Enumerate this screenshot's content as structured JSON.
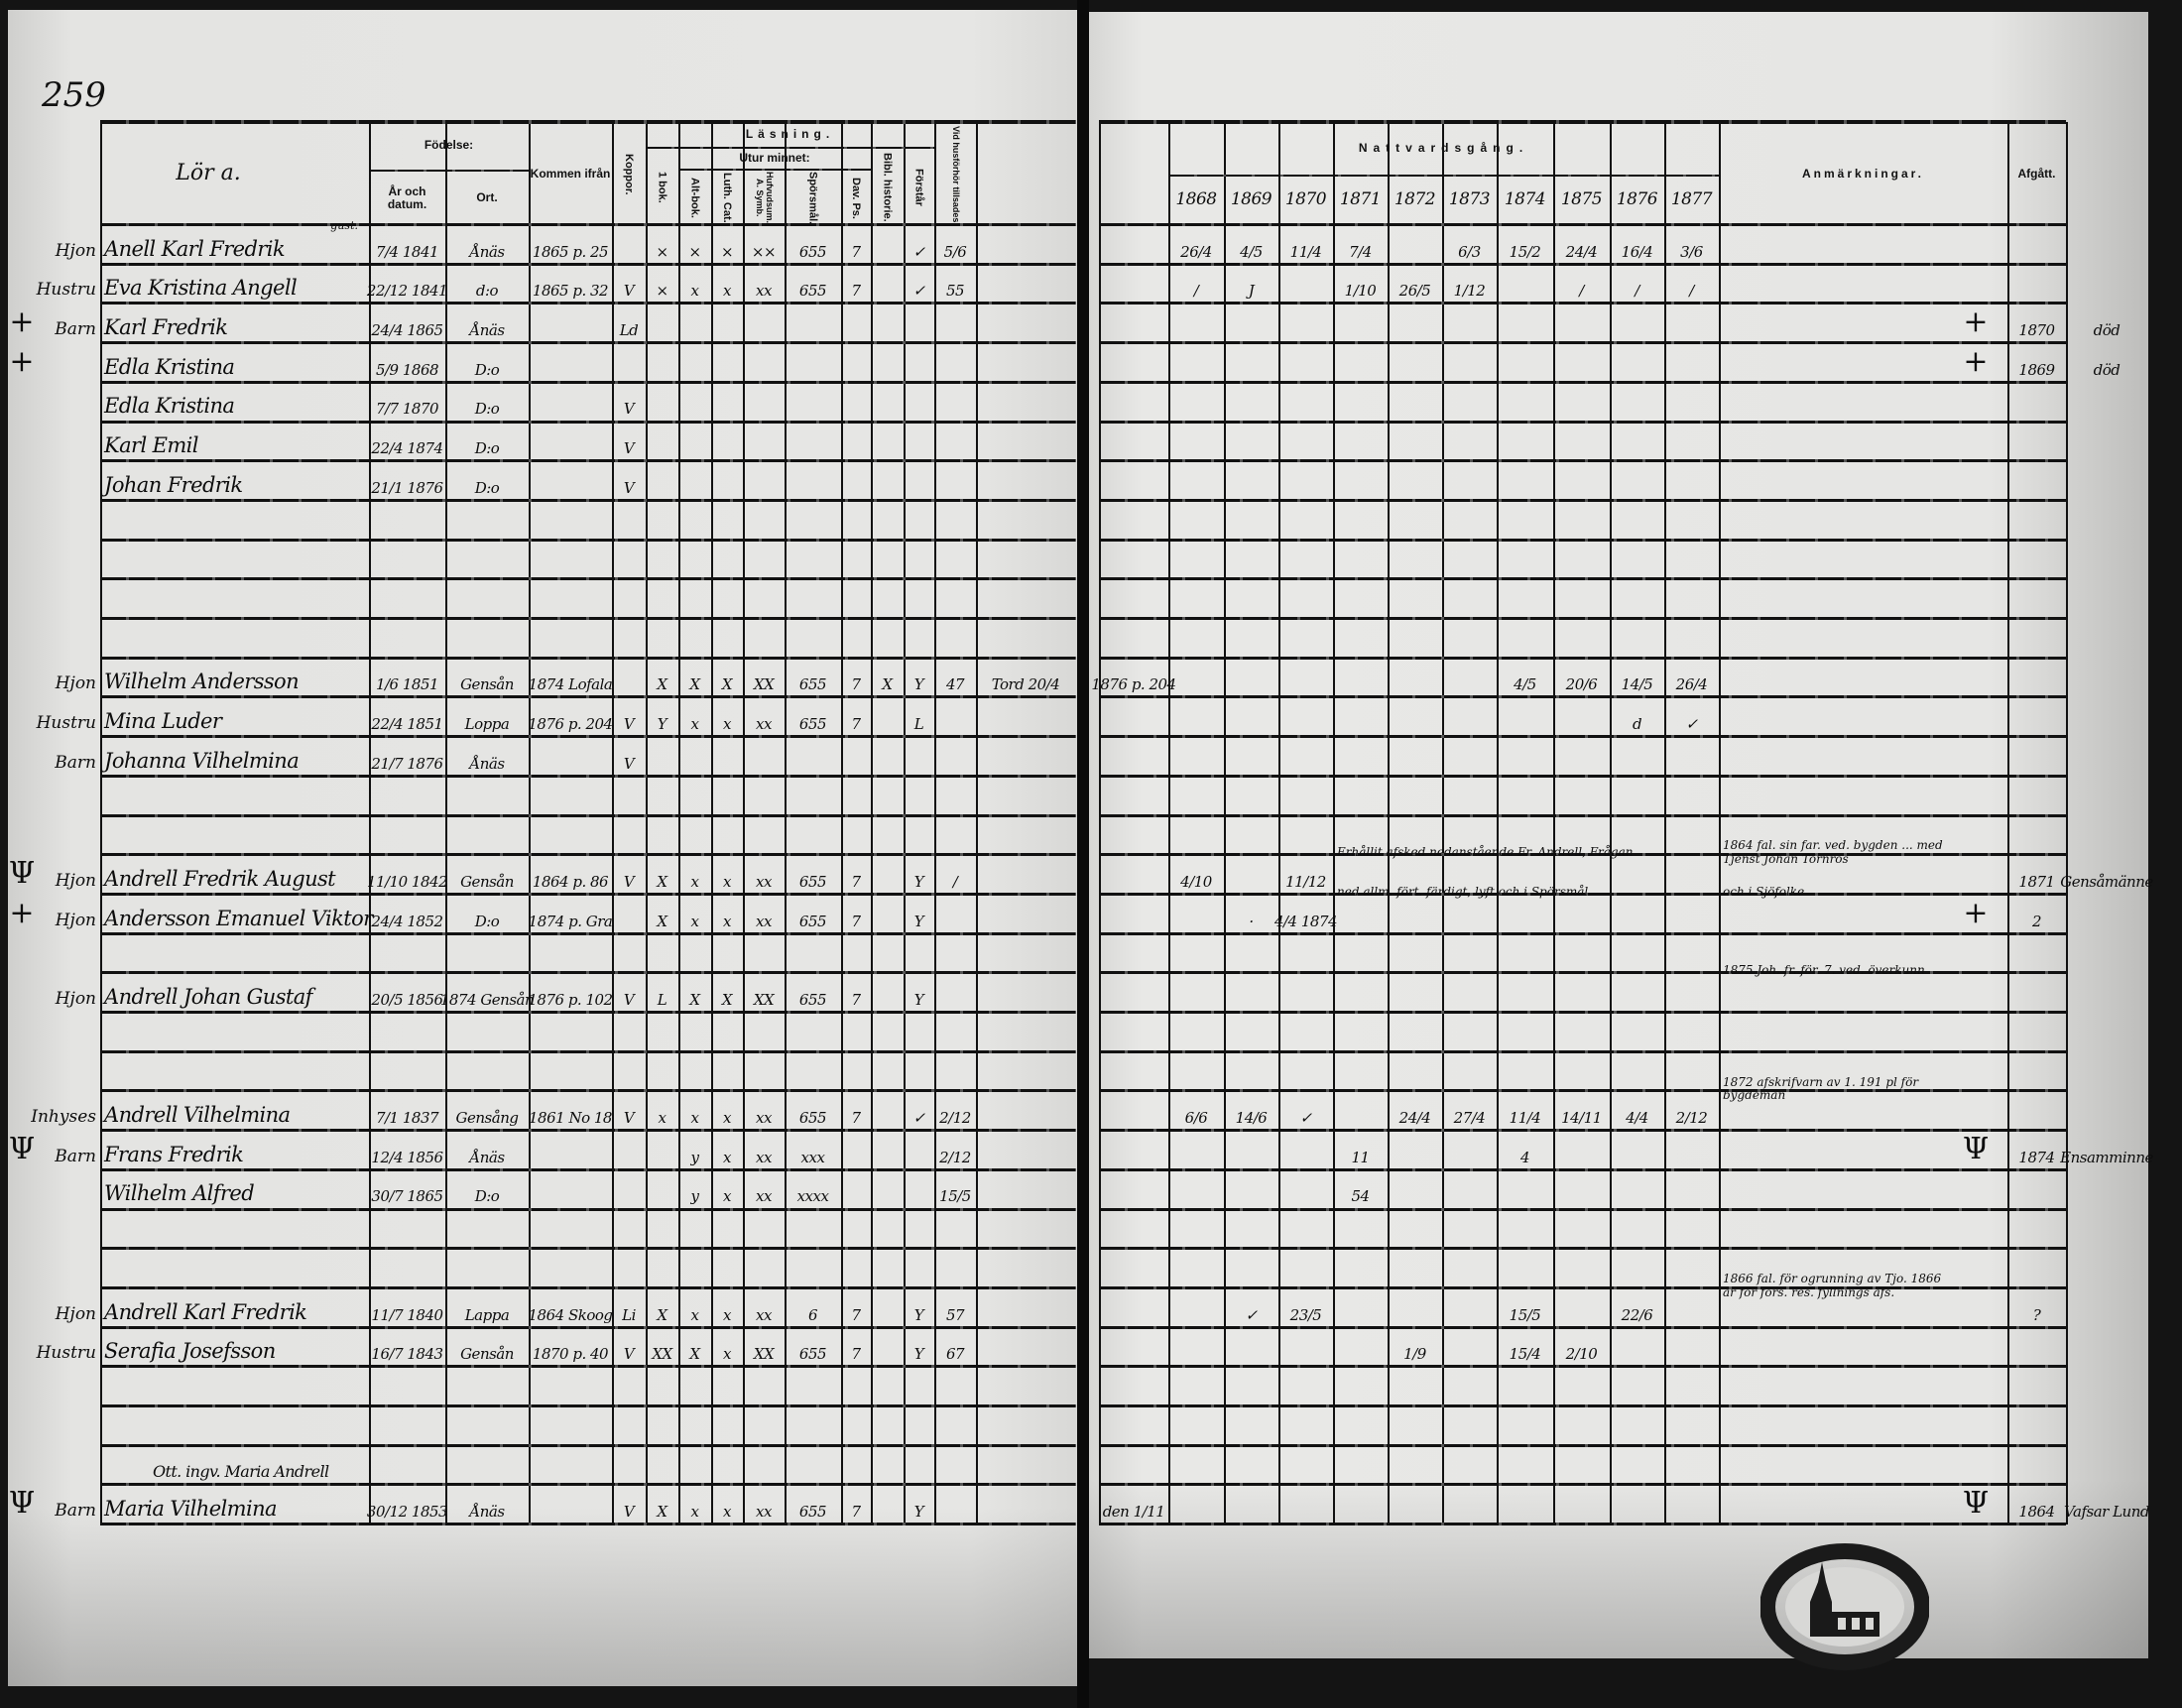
{
  "page_number": "259",
  "header": {
    "farm_note": "Lör a.",
    "birth": "Födelse:",
    "birth_date": "År och datum.",
    "birth_place": "Ort.",
    "from": "Kommen ifrån",
    "koppor": "Koppor.",
    "reading": "Läsning.",
    "first_book": "1 bok.",
    "by_heart": "Utur minnet:",
    "alt_bok": "Alt-bok.",
    "luth_cat": "Luth. Cat.",
    "hufvudsum": "Hufvudsum. A. Symb.",
    "sporsmal": "Spörsmål.",
    "dav_ps": "Dav. Ps.",
    "bibl": "Bibl. historie.",
    "forstar": "Förstår",
    "husforhor": "Vid husförhör tillsades",
    "communion": "Nattvardsgång.",
    "remarks": "Anmärkningar.",
    "departed": "Afgått."
  },
  "years": [
    "1868",
    "1869",
    "1870",
    "1871",
    "1872",
    "1873",
    "1874",
    "1875",
    "1876",
    "1877"
  ],
  "rows": [
    {
      "role": "Hjon",
      "name_note": "gust.",
      "name": "Anell Karl Fredrik",
      "birth_date": "7/4 1841",
      "birth_place": "Ånäs",
      "from": "1865 p. 25",
      "bok": "×",
      "alt_bok": "×",
      "luth_cat": "×",
      "hufvudsum": "××",
      "sporsmal": "655",
      "dav_ps": "7",
      "forstar": "✓",
      "husforhor": "5/6",
      "communion": {
        "1868": "26/4",
        "1869": "4/5",
        "1870": "11/4",
        "1871": "7/4",
        "1873": "6/3",
        "1874": "15/2",
        "1875": "24/4",
        "1876": "16/4",
        "1877": "3/6"
      }
    },
    {
      "role": "Hustru",
      "name": "Eva Kristina Angell",
      "birth_date": "22/12 1841",
      "birth_place": "d:o",
      "from": "1865 p. 32",
      "koppor": "V",
      "bok": "×",
      "alt_bok": "x",
      "luth_cat": "x",
      "hufvudsum": "xx",
      "sporsmal": "655",
      "dav_ps": "7",
      "forstar": "✓",
      "husforhor": "55",
      "communion": {
        "1868": "/",
        "1869": "J",
        "1871": "1/10",
        "1872": "26/5",
        "1873": "1/12",
        "1875": "/",
        "1876": "/",
        "1877": "/"
      }
    },
    {
      "margin_mark": "+",
      "role": "Barn",
      "name": "Karl Fredrik",
      "birth_date": "24/4 1865",
      "birth_place": "Ånäs",
      "koppor": "Ld",
      "remarks_mark": "+",
      "afgatt_year": "1870",
      "afgatt_place": "död"
    },
    {
      "margin_mark": "+",
      "name": "Edla Kristina",
      "birth_date": "5/9 1868",
      "birth_place": "D:o",
      "remarks_mark": "+",
      "afgatt_year": "1869",
      "afgatt_place": "död"
    },
    {
      "name": "Edla Kristina",
      "birth_date": "7/7 1870",
      "birth_place": "D:o",
      "koppor": "V"
    },
    {
      "name": "Karl Emil",
      "birth_date": "22/4 1874",
      "birth_place": "D:o",
      "koppor": "V"
    },
    {
      "name": "Johan Fredrik",
      "birth_date": "21/1 1876",
      "birth_place": "D:o",
      "koppor": "V"
    },
    {},
    {},
    {},
    {},
    {
      "role": "Hjon",
      "name": "Wilhelm Andersson",
      "birth_date": "1/6 1851",
      "birth_place": "Gensån",
      "from": "1874 Lofala",
      "bok": "X",
      "alt_bok": "X",
      "luth_cat": "X",
      "hufvudsum": "XX",
      "sporsmal": "655",
      "dav_ps": "7",
      "bibl": "X",
      "forstar": "Y",
      "husforhor": "47",
      "extra": "Tord 20/4",
      "pre": "1876 p. 204",
      "communion": {
        "1874": "4/5",
        "1875": "20/6",
        "1876": "14/5",
        "1877": "26/4"
      }
    },
    {
      "role": "Hustru",
      "name": "Mina Luder",
      "birth_date": "22/4 1851",
      "birth_place": "Loppa",
      "from": "1876 p. 204",
      "koppor": "V",
      "bok": "Y",
      "alt_bok": "x",
      "luth_cat": "x",
      "hufvudsum": "xx",
      "sporsmal": "655",
      "dav_ps": "7",
      "forstar": "L",
      "communion": {
        "1876": "d",
        "1877": "✓"
      }
    },
    {
      "role": "Barn",
      "name": "Johanna Vilhelmina",
      "birth_date": "21/7 1876",
      "birth_place": "Ånäs",
      "koppor": "V"
    },
    {},
    {},
    {
      "margin_mark": "Ψ",
      "role": "Hjon",
      "name": "Andrell Fredrik August",
      "birth_date": "11/10 1842",
      "birth_place": "Gensån",
      "from": "1864 p. 86",
      "koppor": "V",
      "bok": "X",
      "alt_bok": "x",
      "luth_cat": "x",
      "hufvudsum": "xx",
      "sporsmal": "655",
      "dav_ps": "7",
      "forstar": "Y",
      "husforhor": "/",
      "communion": {
        "1868": "4/10",
        "1870": "11/12"
      },
      "communion_note": "Erhållit afsked nedanstående Fr. Andrell, Frågan",
      "remarks": "1864 fal. sin far. ved. bygden ... med Tjenst Johan Törnros",
      "afgatt_year": "1871",
      "afgatt_place": "Gensåmänne"
    },
    {
      "margin_mark": "+",
      "role": "Hjon",
      "name": "Andersson Emanuel Viktor",
      "birth_date": "24/4 1852",
      "birth_place": "D:o",
      "from": "1874 p. Gra",
      "bok": "X",
      "alt_bok": "x",
      "luth_cat": "x",
      "hufvudsum": "xx",
      "sporsmal": "655",
      "dav_ps": "7",
      "forstar": "Y",
      "communion": {
        "1869": "·",
        "1870": "4/4 1874"
      },
      "communion_note": "ned allm. fört. färdigt, lyft och i Spörsmål",
      "remarks": "och i Sjöfolke",
      "remarks_mark": "+",
      "afgatt_year": "2"
    },
    {},
    {
      "role": "Hjon",
      "name": "Andrell Johan Gustaf",
      "birth_date": "20/5 1856",
      "birth_place": "1874 Gensån",
      "from": "1876 p. 102",
      "koppor": "V",
      "bok": "L",
      "alt_bok": "X",
      "luth_cat": "X",
      "hufvudsum": "XX",
      "sporsmal": "655",
      "dav_ps": "7",
      "forstar": "Y",
      "remarks": "1875 Joh. fr. för. 7. ved. överkunn"
    },
    {},
    {},
    {
      "role": "Inhyses",
      "name": "Andrell Vilhelmina",
      "birth_date": "7/1 1837",
      "birth_place": "Gensång",
      "from": "1861 No 18",
      "koppor": "V",
      "bok": "x",
      "alt_bok": "x",
      "luth_cat": "x",
      "hufvudsum": "xx",
      "sporsmal": "655",
      "dav_ps": "7",
      "forstar": "✓",
      "husforhor": "2/12",
      "communion": {
        "1868": "6/6",
        "1869": "14/6",
        "1870": "✓",
        "1872": "24/4",
        "1873": "27/4",
        "1874": "11/4",
        "1875": "14/11",
        "1876": "4/4",
        "1877": "2/12"
      },
      "remarks": "1872 afskrifvarn av 1. 191 pl för bygdemän"
    },
    {
      "margin_mark": "Ψ",
      "role": "Barn",
      "name": "Frans Fredrik",
      "birth_date": "12/4 1856",
      "birth_place": "Ånäs",
      "alt_bok": "y",
      "luth_cat": "x",
      "hufvudsum": "xx",
      "sporsmal": "xxx",
      "husforhor": "2/12",
      "communion": {
        "1871": "11",
        "1874": "4"
      },
      "remarks_mark": "Ψ",
      "afgatt_year": "1874",
      "afgatt_place": "Ensamminne"
    },
    {
      "name": "Wilhelm Alfred",
      "birth_date": "30/7 1865",
      "birth_place": "D:o",
      "alt_bok": "y",
      "luth_cat": "x",
      "hufvudsum": "xx",
      "sporsmal": "xxxx",
      "husforhor": "15/5",
      "communion": {
        "1871": "54"
      }
    },
    {},
    {},
    {
      "role": "Hjon",
      "name": "Andrell Karl Fredrik",
      "birth_date": "11/7 1840",
      "birth_place": "Lappa",
      "from": "1864 Skoog",
      "koppor": "Li",
      "bok": "X",
      "alt_bok": "x",
      "luth_cat": "x",
      "hufvudsum": "xx",
      "sporsmal": "6",
      "dav_ps": "7",
      "forstar": "Y",
      "husforhor": "57",
      "communion": {
        "1869": "✓",
        "1870": "23/5",
        "1874": "15/5",
        "1876": "22/6"
      },
      "remarks": "1866 fal. för ogrunning av Tjo. 1866 är för förs. res. fyllnings afs.",
      "afgatt_year": "?"
    },
    {
      "role": "Hustru",
      "name": "Serafia Josefsson",
      "birth_date": "16/7 1843",
      "birth_place": "Gensån",
      "from": "1870 p. 40",
      "koppor": "V",
      "bok": "XX",
      "alt_bok": "X",
      "luth_cat": "x",
      "hufvudsum": "XX",
      "sporsmal": "655",
      "dav_ps": "7",
      "forstar": "Y",
      "husforhor": "67",
      "communion": {
        "1872": "1/9",
        "1874": "15/4",
        "1875": "2/10"
      }
    },
    {},
    {},
    {
      "note": "Ott. ingv. Maria Andrell"
    },
    {
      "margin_mark": "Ψ",
      "role": "Barn",
      "name": "Maria Vilhelmina",
      "birth_date": "30/12 1853",
      "birth_place": "Ånäs",
      "koppor": "V",
      "bok": "X",
      "alt_bok": "x",
      "luth_cat": "x",
      "hufvudsum": "xx",
      "sporsmal": "655",
      "dav_ps": "7",
      "forstar": "Y",
      "pre": "den 1/11",
      "remarks_mark": "Ψ",
      "afgatt_year": "1864",
      "afgatt_place": "Vafsar Lund"
    }
  ],
  "colors": {
    "paper": "#e2e2e0",
    "ink": "#111111",
    "edge": "#141414"
  }
}
